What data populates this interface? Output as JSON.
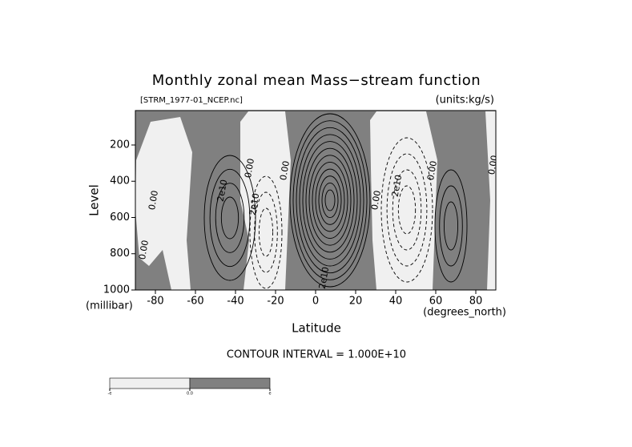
{
  "chart_data": {
    "type": "contour",
    "title": "Monthly zonal mean Mass−stream function",
    "subtitle": "[STRM_1977-01_NCEP.nc]",
    "units_label": "(units:kg/s)",
    "x_label": "Latitude",
    "y_label": "Level",
    "x_unit_label": "(degrees_north)",
    "y_unit_label": "(millibar)",
    "xlim": [
      -90,
      90
    ],
    "xticks": [
      -80,
      -60,
      -40,
      -20,
      0,
      20,
      40,
      60,
      80
    ],
    "ylim": [
      1000,
      10
    ],
    "yticks": [
      200,
      400,
      600,
      800,
      1000
    ],
    "contour_interval_text": "CONTOUR INTERVAL = 1.000E+10",
    "contour_labels": [
      "0.00",
      "0.00",
      "2e10",
      "0.00",
      "2e10",
      "0.00",
      "0.00",
      "2e10",
      "0.00",
      "0.00",
      "2e10"
    ],
    "colors": [
      "#f0f0f0",
      "#808080"
    ],
    "colorbar_labels": [
      "-e",
      "0.0",
      "e"
    ]
  }
}
